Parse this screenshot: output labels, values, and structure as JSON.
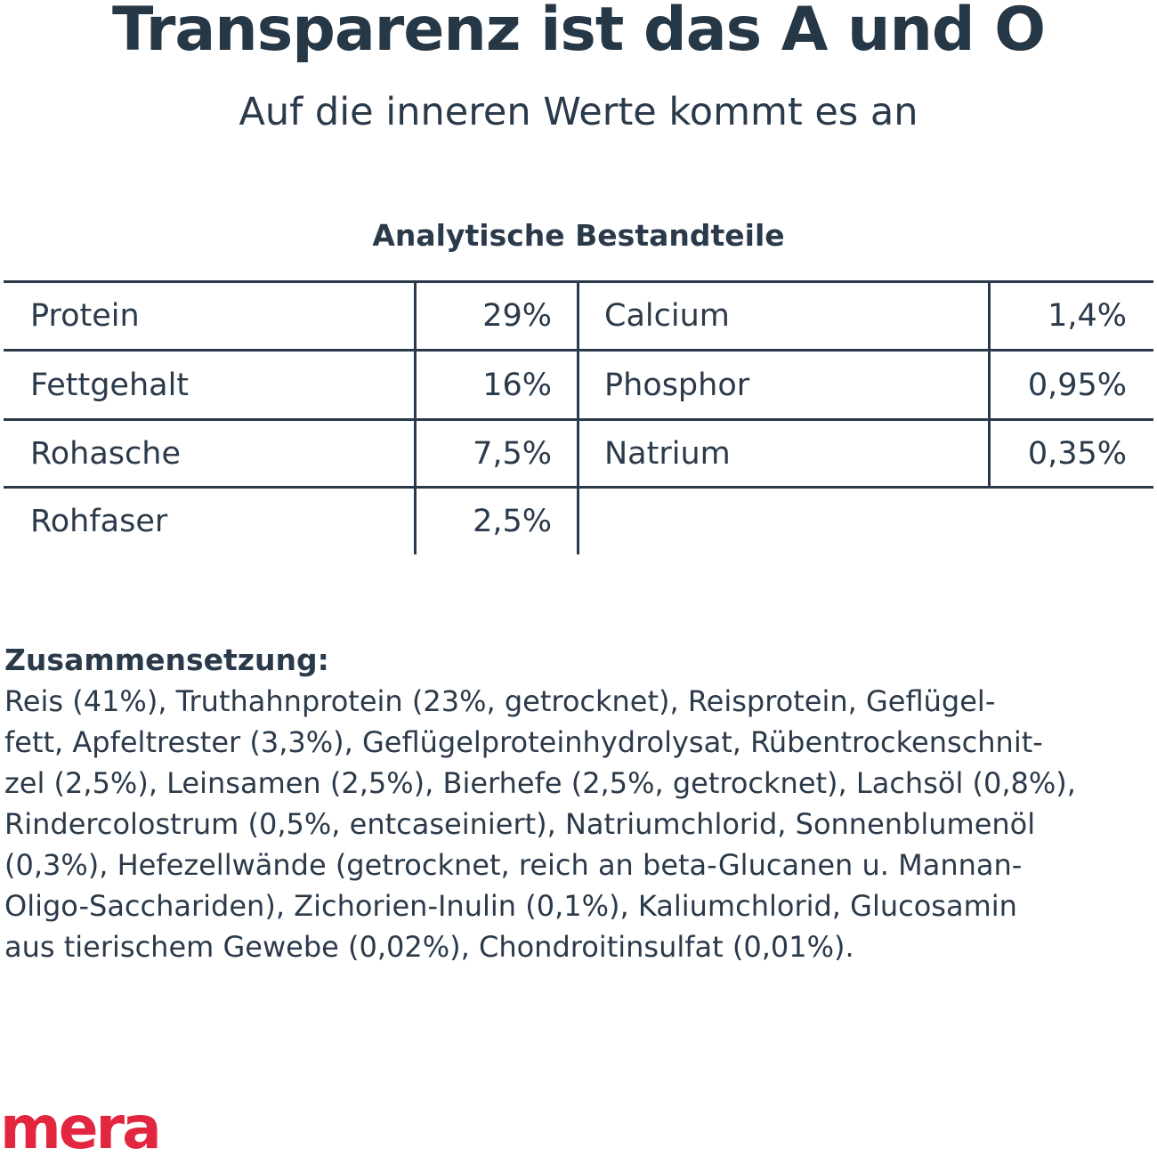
{
  "header": {
    "title": "Transparenz ist das A und O",
    "subtitle": "Auf die inneren Werte kommt es an"
  },
  "analysis": {
    "heading": "Analytische Bestandteile",
    "left": [
      {
        "label": "Protein",
        "value": "29%"
      },
      {
        "label": "Fettgehalt",
        "value": "16%"
      },
      {
        "label": "Rohasche",
        "value": "7,5%"
      },
      {
        "label": "Rohfaser",
        "value": "2,5%"
      }
    ],
    "right": [
      {
        "label": "Calcium",
        "value": "1,4%"
      },
      {
        "label": "Phosphor",
        "value": "0,95%"
      },
      {
        "label": "Natrium",
        "value": "0,35%"
      }
    ]
  },
  "composition": {
    "heading": "Zusammensetzung:",
    "lines": [
      "Reis (41%), Truthahnprotein (23%, getrocknet), Reisprotein, Geflügel-",
      "fett, Apfeltrester (3,3%), Geflügelproteinhydrolysat, Rübentrockenschnit-",
      "zel (2,5%), Leinsamen (2,5%), Bierhefe (2,5%, getrocknet), Lachsöl (0,8%),",
      "Rindercolostrum (0,5%, entcaseiniert), Natriumchlorid, Sonnenblumenöl",
      "(0,3%), Hefezellwände (getrocknet, reich an beta-Glucanen u. Mannan-",
      "Oligo-Sacchariden), Zichorien-Inulin (0,1%), Kaliumchlorid, Glucosamin",
      "aus tierischem Gewebe (0,02%), Chondroitinsulfat (0,01%)."
    ]
  },
  "brand": {
    "logo_text": "mera",
    "color": "#e3263f"
  },
  "colors": {
    "text": "#2b3a4a",
    "title": "#263746",
    "background": "#ffffff"
  }
}
